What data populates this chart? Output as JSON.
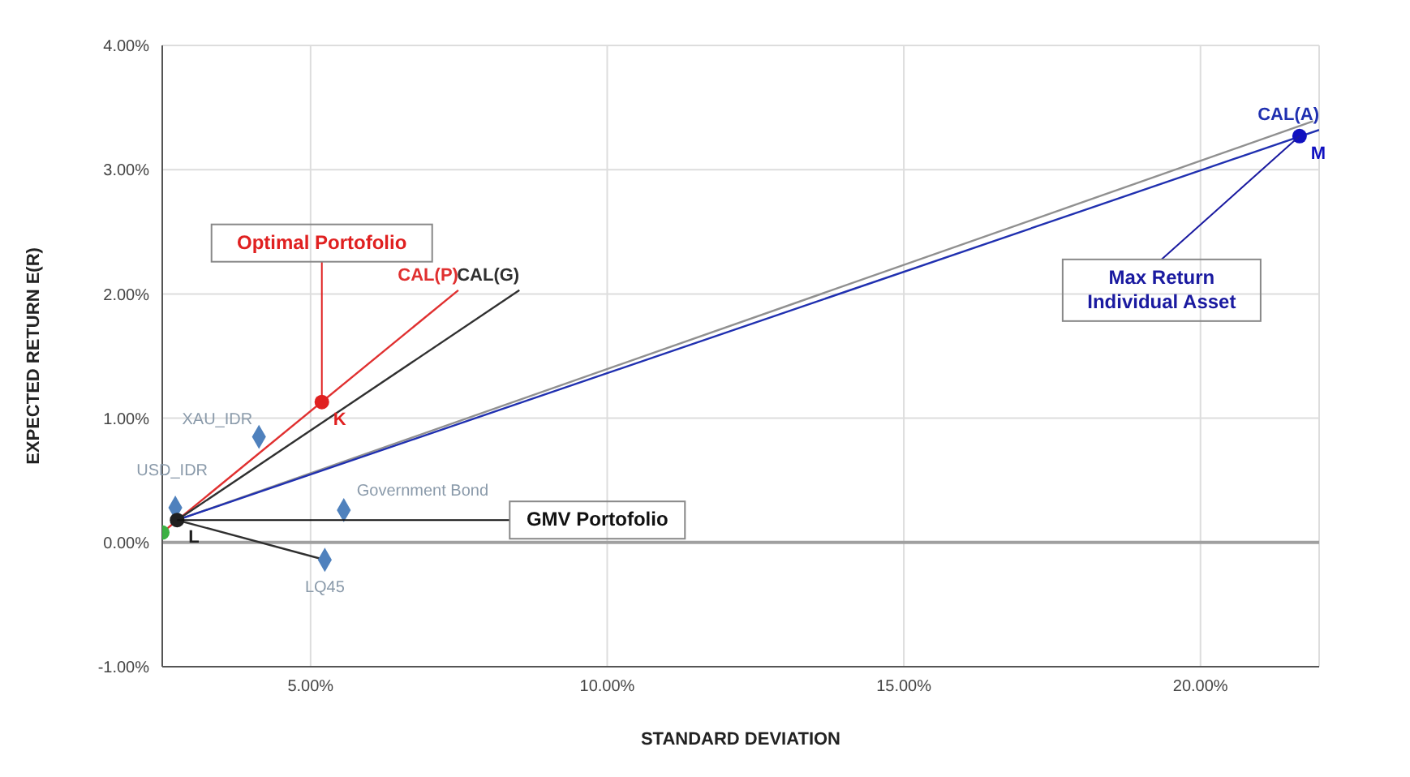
{
  "chart_data": {
    "type": "scatter",
    "xlabel": "STANDARD DEVIATION",
    "ylabel": "EXPECTED RETURN  E(R)",
    "xlim": [
      2.5,
      22
    ],
    "ylim": [
      -1,
      4
    ],
    "xticks": [
      {
        "value": 5,
        "label": "5.00%"
      },
      {
        "value": 10,
        "label": "10.00%"
      },
      {
        "value": 15,
        "label": "15.00%"
      },
      {
        "value": 20,
        "label": "20.00%"
      }
    ],
    "yticks": [
      {
        "value": -1,
        "label": "-1.00%"
      },
      {
        "value": 0,
        "label": "0.00%"
      },
      {
        "value": 1,
        "label": "1.00%"
      },
      {
        "value": 2,
        "label": "2.00%"
      },
      {
        "value": 3,
        "label": "3.00%"
      },
      {
        "value": 4,
        "label": "4.00%"
      }
    ],
    "grid": true,
    "legend": false,
    "ref_lines": [
      {
        "axis": "y",
        "value": 0,
        "color": "#a0a0a0"
      }
    ],
    "series": [
      {
        "type": "line",
        "name": "CAL(P)",
        "color": "#e03030",
        "x": [
          2.5,
          7.49
        ],
        "values": [
          0.08,
          2.03
        ]
      },
      {
        "type": "line",
        "name": "CAL(G)",
        "color": "#303030",
        "x": [
          2.75,
          8.52
        ],
        "values": [
          0.18,
          2.03
        ]
      },
      {
        "type": "line",
        "color": "#909090",
        "x": [
          2.75,
          21.9
        ],
        "values": [
          0.18,
          3.39
        ]
      },
      {
        "type": "line",
        "name": "CAL(A)",
        "color": "#2030b0",
        "x": [
          2.75,
          22
        ],
        "values": [
          0.18,
          3.32
        ]
      },
      {
        "type": "line",
        "color": "#303030",
        "x": [
          2.75,
          5.24
        ],
        "values": [
          0.18,
          -0.14
        ]
      },
      {
        "type": "scatter",
        "marker": "diamond",
        "color": "#4f81bd",
        "x": [
          4.13,
          2.72,
          5.56,
          5.24
        ],
        "values": [
          0.85,
          0.28,
          0.26,
          -0.14
        ]
      },
      {
        "type": "scatter",
        "marker": "circle",
        "color": "#3cb043",
        "x": [
          2.5
        ],
        "values": [
          0.08
        ]
      },
      {
        "type": "scatter",
        "marker": "circle",
        "name": "K",
        "color": "#e02020",
        "x": [
          5.19
        ],
        "values": [
          1.13
        ]
      },
      {
        "type": "scatter",
        "marker": "circle",
        "name": "L",
        "color": "#202020",
        "x": [
          2.75
        ],
        "values": [
          0.18
        ]
      },
      {
        "type": "scatter",
        "marker": "circle",
        "name": "M",
        "color": "#1010c0",
        "x": [
          21.67
        ],
        "values": [
          3.27
        ]
      }
    ],
    "annotations": [
      {
        "text": "XAU_IDR",
        "x": 4.13,
        "y": 0.85
      },
      {
        "text": "USD_IDR",
        "x": 2.72,
        "y": 0.28
      },
      {
        "text": "Government Bond",
        "x": 5.56,
        "y": 0.26
      },
      {
        "text": "LQ45",
        "x": 5.24,
        "y": -0.14
      },
      {
        "text": "Optimal Portofolio",
        "x": 5.19,
        "y": 1.13
      },
      {
        "text": "GMV Portofolio",
        "x": 2.75,
        "y": 0.18
      },
      {
        "text": "Max Return Individual Asset",
        "x": 21.67,
        "y": 3.27
      }
    ]
  }
}
